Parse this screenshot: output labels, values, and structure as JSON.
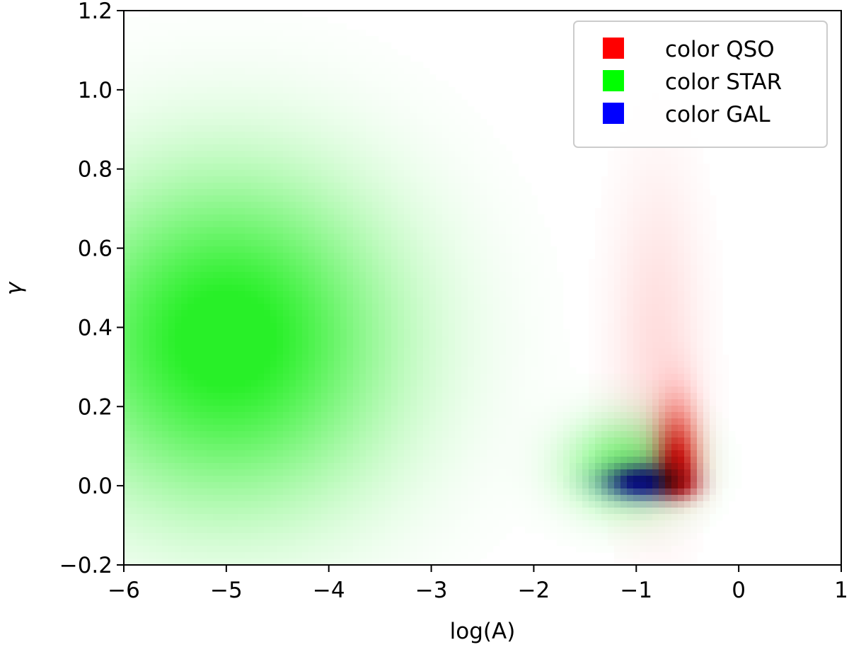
{
  "chart_data": {
    "type": "heatmap",
    "xlabel": "log(A)",
    "ylabel": "γ",
    "xlim": [
      -6,
      1
    ],
    "ylim": [
      -0.2,
      1.2
    ],
    "xticks": [
      -6,
      -5,
      -4,
      -3,
      -2,
      -1,
      0,
      1
    ],
    "yticks": [
      -0.2,
      0.0,
      0.2,
      0.4,
      0.6,
      0.8,
      1.0,
      1.2
    ],
    "xtick_labels": [
      "−6",
      "−5",
      "−4",
      "−3",
      "−2",
      "−1",
      "0",
      "1"
    ],
    "ytick_labels": [
      "−0.2",
      "0.0",
      "0.2",
      "0.4",
      "0.6",
      "0.8",
      "1.0",
      "1.2"
    ],
    "grid": false,
    "legend_position": "top-right",
    "series": [
      {
        "name": "color QSO",
        "color": "#ff0000",
        "rgb": [
          255,
          20,
          20
        ],
        "density_peak": {
          "log_A": -0.6,
          "gamma": 0.01
        },
        "spread": {
          "log_A": 0.15,
          "gamma_up": 0.12,
          "gamma_down": 0.03
        },
        "tail": {
          "log_A": -0.8,
          "gamma": 0.35,
          "spread_log_A": 0.3,
          "spread_gamma": 0.3
        }
      },
      {
        "name": "color STAR",
        "color": "#00ff00",
        "rgb": [
          40,
          240,
          40
        ],
        "density_peak": {
          "log_A": -5.0,
          "gamma": 0.37
        },
        "spread": {
          "log_A": 1.1,
          "gamma": 0.28
        },
        "secondary": {
          "log_A": -1.1,
          "gamma": 0.05,
          "spread_log_A": 0.4,
          "spread_gamma": 0.08
        }
      },
      {
        "name": "color GAL",
        "color": "#0000ff",
        "rgb": [
          20,
          20,
          240
        ],
        "density_peak": {
          "log_A": -0.95,
          "gamma": 0.01
        },
        "spread": {
          "log_A": 0.25,
          "gamma": 0.03
        }
      }
    ]
  }
}
